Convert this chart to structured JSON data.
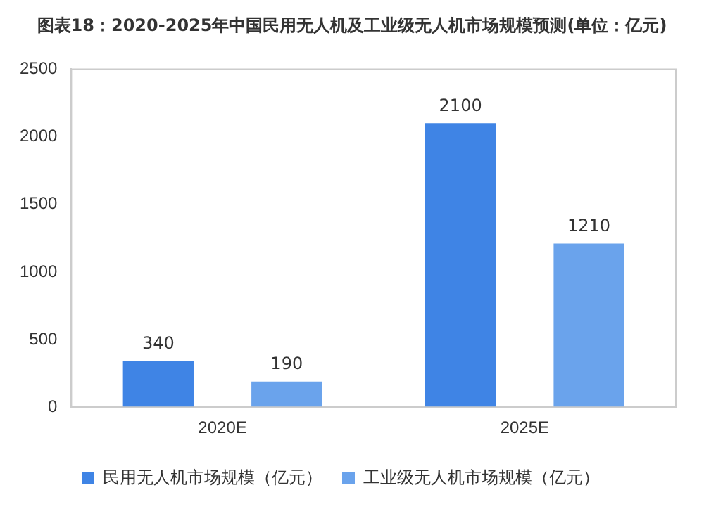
{
  "chart_data": {
    "type": "bar",
    "title": "图表18：2020-2025年中国民用无人机及工业级无人机市场规模预测(单位：亿元)",
    "categories": [
      "2020E",
      "2025E"
    ],
    "series": [
      {
        "name": "民用无人机市场规模（亿元）",
        "color": "#3f84e5",
        "values": [
          340,
          2100
        ]
      },
      {
        "name": "工业级无人机市场规模（亿元）",
        "color": "#6aa3ec",
        "values": [
          190,
          1210
        ]
      }
    ],
    "ylim": [
      0,
      2500
    ],
    "yticks": [
      0,
      500,
      1000,
      1500,
      2000,
      2500
    ],
    "grid": false,
    "legend": "bottom",
    "data_labels": true
  }
}
